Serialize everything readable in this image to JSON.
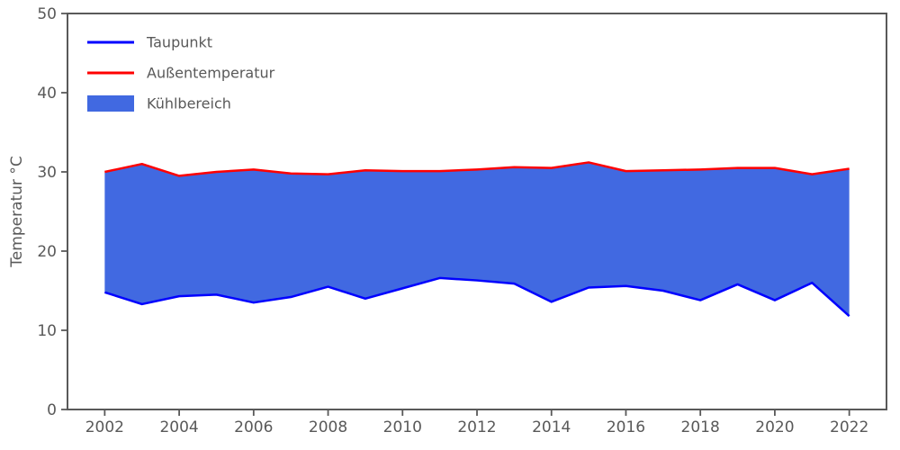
{
  "chart_data": {
    "type": "area",
    "title": "",
    "xlabel": "",
    "ylabel": "Temperatur °C",
    "x": [
      2002,
      2003,
      2004,
      2005,
      2006,
      2007,
      2008,
      2009,
      2010,
      2011,
      2012,
      2013,
      2014,
      2015,
      2016,
      2017,
      2018,
      2019,
      2020,
      2021,
      2022
    ],
    "series": [
      {
        "name": "Taupunkt",
        "color": "#0000ff",
        "values": [
          14.8,
          13.3,
          14.3,
          14.5,
          13.5,
          14.2,
          15.5,
          14.0,
          15.3,
          16.6,
          16.3,
          15.9,
          13.6,
          15.4,
          15.6,
          15.0,
          13.8,
          15.8,
          13.8,
          16.0,
          11.8
        ]
      },
      {
        "name": "Außentemperatur",
        "color": "#ff0000",
        "values": [
          30.0,
          31.0,
          29.5,
          30.0,
          30.3,
          29.8,
          29.7,
          30.2,
          30.1,
          30.1,
          30.3,
          30.6,
          30.5,
          31.2,
          30.1,
          30.2,
          30.3,
          30.5,
          30.5,
          29.7,
          30.4
        ]
      }
    ],
    "fill_between": {
      "name": "Kühlbereich",
      "color": "#4169e1",
      "lower_series": "Taupunkt",
      "upper_series": "Außentemperatur"
    },
    "legend": {
      "position": "upper-left",
      "frame": false,
      "entries": [
        {
          "label": "Taupunkt",
          "type": "line",
          "color": "#0000ff"
        },
        {
          "label": "Außentemperatur",
          "type": "line",
          "color": "#ff0000"
        },
        {
          "label": "Kühlbereich",
          "type": "patch",
          "color": "#4169e1"
        }
      ]
    },
    "xlim": [
      2001,
      2023
    ],
    "ylim": [
      0,
      50
    ],
    "xticks": [
      2002,
      2004,
      2006,
      2008,
      2010,
      2012,
      2014,
      2016,
      2018,
      2020,
      2022
    ],
    "yticks": [
      0,
      10,
      20,
      30,
      40,
      50
    ],
    "grid": false,
    "axis_color": "#595959",
    "tick_label_color": "#595959",
    "background_color": "#ffffff"
  }
}
